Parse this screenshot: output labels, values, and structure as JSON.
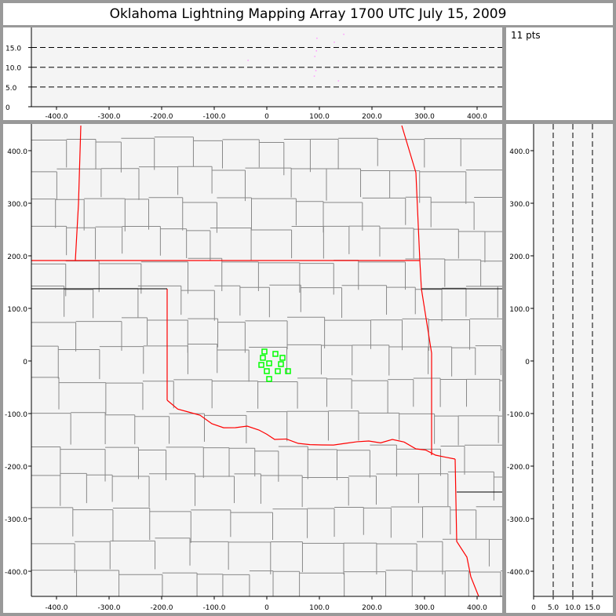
{
  "title": "Oklahoma Lightning Mapping Array   1700 UTC  July 15, 2009",
  "info": {
    "point_count": "11 pts"
  },
  "colors": {
    "background": "#f4f4f4",
    "frame": "#999999",
    "state_border": "#ff0000",
    "county_line": "#888888",
    "source_marker": "#00ff00",
    "altitude_marker": "#ff99ff"
  },
  "chart_data": [
    {
      "type": "scatter",
      "panel": "plan-view",
      "xlim": [
        -447,
        447
      ],
      "ylim": [
        -447,
        450
      ],
      "x_ticks": [
        "-400.0",
        "-300.0",
        "-200.0",
        "-100.0",
        "0",
        "100.0",
        "200.0",
        "300.0",
        "400.0"
      ],
      "y_ticks": [
        "400.0",
        "300.0",
        "200.0",
        "100.0",
        "0",
        "-100.0",
        "-200.0",
        "-300.0",
        "-400.0"
      ],
      "marker": "open-square",
      "points": [
        [
          -4.5,
          17.9
        ],
        [
          -7.5,
          6
        ],
        [
          16.4,
          13.4
        ],
        [
          29.9,
          6
        ],
        [
          -10.4,
          -7.5
        ],
        [
          4.5,
          -4.5
        ],
        [
          26.9,
          -6
        ],
        [
          0,
          -19.4
        ],
        [
          20.9,
          -19.4
        ],
        [
          40.3,
          -19.4
        ],
        [
          4.5,
          -34.3
        ]
      ]
    },
    {
      "type": "scatter",
      "panel": "east-west-vs-altitude",
      "xlim": [
        -447,
        447
      ],
      "ylim": [
        0,
        19
      ],
      "x_ticks": [
        "-400.0",
        "-300.0",
        "-200.0",
        "-100.0",
        "0",
        "100.0",
        "200.0",
        "300.0",
        "400.0"
      ],
      "y_ticks": [
        "15.0",
        "10.0",
        "5.0",
        "0"
      ],
      "dashed_gridlines": [
        5,
        10,
        15
      ],
      "points": [
        [
          95,
          17.4
        ],
        [
          146,
          18.4
        ],
        [
          128,
          16.4
        ],
        [
          94,
          14.2
        ],
        [
          91,
          12.8
        ],
        [
          -36,
          11.8
        ],
        [
          93,
          9.2
        ],
        [
          90,
          7.8
        ],
        [
          136,
          6.6
        ]
      ]
    },
    {
      "type": "scatter",
      "panel": "altitude-vs-north-south",
      "xlim": [
        0,
        20
      ],
      "ylim": [
        -447,
        450
      ],
      "x_ticks": [
        "0",
        "5.0",
        "10.0",
        "15.0"
      ],
      "y_ticks": [
        "400.0",
        "300.0",
        "200.0",
        "100.0",
        "0",
        "-100.0",
        "-200.0",
        "-300.0",
        "-400.0"
      ],
      "dashed_gridlines": [
        5,
        10,
        15
      ],
      "points": []
    }
  ]
}
